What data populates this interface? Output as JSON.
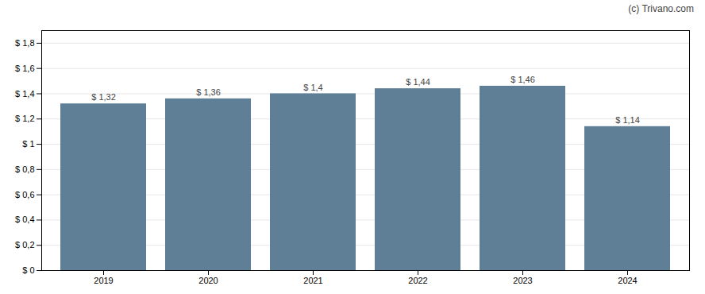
{
  "chart_data": {
    "type": "bar",
    "categories": [
      "2019",
      "2020",
      "2021",
      "2022",
      "2023",
      "2024"
    ],
    "values": [
      1.32,
      1.36,
      1.4,
      1.44,
      1.46,
      1.14
    ],
    "value_labels": [
      "$ 1,32",
      "$ 1,36",
      "$ 1,4",
      "$ 1,44",
      "$ 1,46",
      "$ 1,14"
    ],
    "data_labels": true,
    "color": "#5e7f96",
    "ylim": [
      0,
      1.9
    ],
    "yticks": [
      {
        "value": 0,
        "label": "$ 0"
      },
      {
        "value": 0.2,
        "label": "$ 0,2"
      },
      {
        "value": 0.4,
        "label": "$ 0,4"
      },
      {
        "value": 0.6,
        "label": "$ 0,6"
      },
      {
        "value": 0.8,
        "label": "$ 0,8"
      },
      {
        "value": 1.0,
        "label": "$ 1"
      },
      {
        "value": 1.2,
        "label": "$ 1,2"
      },
      {
        "value": 1.4,
        "label": "$ 1,4"
      },
      {
        "value": 1.6,
        "label": "$ 1,6"
      },
      {
        "value": 1.8,
        "label": "$ 1,8"
      }
    ],
    "grid": true,
    "annotations": [
      "(c) Trivano.com"
    ]
  }
}
